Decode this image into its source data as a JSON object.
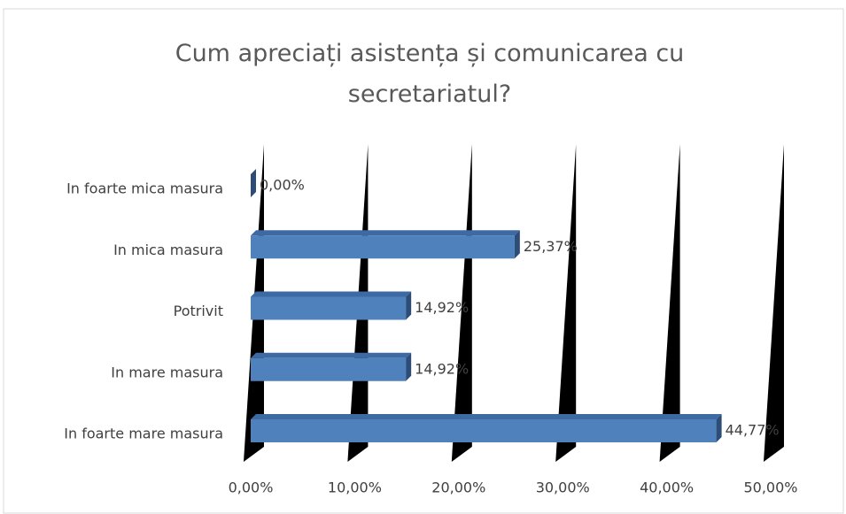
{
  "chart_data": {
    "type": "bar3d_horizontal",
    "title": "Cum apreciați asistența și comunicarea cu secretariatul?",
    "categories": [
      "In foarte mica masura",
      "In mica masura",
      "Potrivit",
      "In mare masura",
      "In foarte mare masura"
    ],
    "values": [
      0,
      25.37,
      14.92,
      14.92,
      44.77
    ],
    "value_labels": [
      "0,00%",
      "25,37%",
      "14,92%",
      "14,92%",
      "44,77%"
    ],
    "color": "#4f81bd",
    "xlim": [
      0,
      50
    ],
    "xticks": [
      {
        "value": 0,
        "label": "0,00%"
      },
      {
        "value": 10,
        "label": "10,00%"
      },
      {
        "value": 20,
        "label": "20,00%"
      },
      {
        "value": 30,
        "label": "30,00%"
      },
      {
        "value": 40,
        "label": "40,00%"
      },
      {
        "value": 50,
        "label": "50,00%"
      }
    ],
    "grid": true
  }
}
